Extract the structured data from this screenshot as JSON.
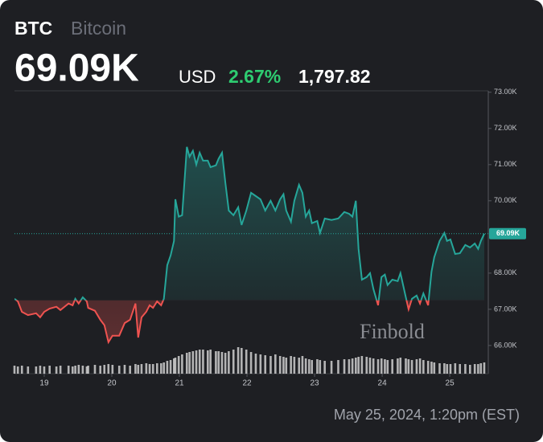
{
  "chart_data": {
    "type": "baseline",
    "header": {
      "symbol": "BTC",
      "name": "Bitcoin",
      "price": "69.09K",
      "currency": "USD",
      "change_pct": "2.67%",
      "change_abs": "1,797.82"
    },
    "watermark": "Finbold",
    "timestamp": "May 25, 2024, 1:20pm (EST)",
    "x": [
      18.56,
      18.61,
      18.67,
      18.76,
      18.88,
      18.94,
      19.0,
      19.08,
      19.18,
      19.24,
      19.36,
      19.42,
      19.46,
      19.51,
      19.57,
      19.63,
      19.65,
      19.75,
      19.83,
      19.89,
      19.95,
      20.01,
      20.11,
      20.19,
      20.27,
      20.35,
      20.39,
      20.44,
      20.51,
      20.56,
      20.61,
      20.67,
      20.73,
      20.77,
      20.82,
      20.87,
      20.92,
      20.94,
      20.99,
      21.04,
      21.11,
      21.15,
      21.2,
      21.25,
      21.3,
      21.35,
      21.42,
      21.46,
      21.54,
      21.58,
      21.63,
      21.68,
      21.73,
      21.8,
      21.87,
      21.92,
      21.99,
      22.06,
      22.13,
      22.2,
      22.27,
      22.35,
      22.42,
      22.49,
      22.54,
      22.58,
      22.65,
      22.7,
      22.77,
      22.82,
      22.87,
      22.92,
      22.96,
      23.04,
      23.08,
      23.15,
      23.25,
      23.35,
      23.44,
      23.51,
      23.56,
      23.61,
      23.65,
      23.7,
      23.77,
      23.82,
      23.87,
      23.94,
      23.99,
      24.04,
      24.08,
      24.15,
      24.23,
      24.27,
      24.35,
      24.39,
      24.44,
      24.51,
      24.56,
      24.61,
      24.68,
      24.73,
      24.77,
      24.85,
      24.92,
      24.96,
      25.01,
      25.08,
      25.15,
      25.23,
      25.3,
      25.37,
      25.42,
      25.46,
      25.51
    ],
    "values": [
      67290,
      67220,
      66930,
      66840,
      66890,
      66780,
      66930,
      67020,
      67070,
      66980,
      67160,
      67110,
      67290,
      67160,
      67330,
      67220,
      67040,
      66960,
      66710,
      66560,
      66090,
      66270,
      66270,
      66620,
      66710,
      67160,
      66220,
      66780,
      66930,
      67110,
      67040,
      67220,
      67110,
      67290,
      68220,
      68490,
      68890,
      70040,
      69560,
      69600,
      71490,
      71220,
      71380,
      71000,
      71330,
      71110,
      71110,
      70930,
      70980,
      71160,
      71330,
      70490,
      69730,
      69600,
      69820,
      69330,
      69730,
      70220,
      70130,
      70040,
      69730,
      70000,
      69730,
      70040,
      70180,
      69730,
      69420,
      70000,
      70440,
      70220,
      69560,
      69730,
      69380,
      69440,
      69110,
      69510,
      69470,
      69510,
      69690,
      69640,
      69560,
      70000,
      68670,
      67820,
      67890,
      68000,
      67560,
      67110,
      67890,
      67960,
      67670,
      67820,
      67780,
      68000,
      67330,
      67000,
      67290,
      67380,
      67160,
      67440,
      67110,
      68040,
      68440,
      68890,
      69110,
      68890,
      68930,
      68530,
      68550,
      68780,
      68710,
      68820,
      68670,
      68890,
      69090
    ],
    "baseline": 67250,
    "color_up": "#26a69a",
    "color_down": "#ef5350",
    "volume": {
      "color": "#cfcfcf",
      "lim": [
        0,
        35
      ],
      "values": [
        10,
        9,
        10,
        9,
        9,
        10,
        9,
        10,
        9,
        10,
        10,
        9,
        10,
        11,
        10,
        9,
        10,
        11,
        10,
        11,
        12,
        11,
        10,
        11,
        10,
        12,
        11,
        12,
        13,
        12,
        12,
        13,
        13,
        14,
        16,
        17,
        19,
        20,
        22,
        24,
        26,
        27,
        28,
        29,
        30,
        30,
        29,
        30,
        28,
        28,
        27,
        26,
        28,
        30,
        33,
        32,
        30,
        27,
        25,
        24,
        23,
        22,
        24,
        22,
        21,
        20,
        22,
        21,
        20,
        22,
        19,
        18,
        17,
        18,
        17,
        16,
        16,
        17,
        18,
        18,
        19,
        20,
        21,
        22,
        21,
        20,
        19,
        18,
        19,
        18,
        17,
        18,
        19,
        20,
        19,
        18,
        17,
        18,
        19,
        17,
        16,
        15,
        14,
        13,
        13,
        12,
        12,
        13,
        12,
        12,
        11,
        12,
        12,
        13,
        14
      ]
    },
    "last_label": {
      "value": 69090,
      "label": "69.09K"
    },
    "xlim": [
      18.56,
      25.57
    ],
    "xticks": [
      19,
      20,
      21,
      22,
      23,
      24,
      25
    ],
    "ylim": [
      65220,
      73040
    ],
    "yticks": [
      {
        "value": 66000,
        "label": "66.00K"
      },
      {
        "value": 67000,
        "label": "67.00K"
      },
      {
        "value": 68000,
        "label": "68.00K"
      },
      {
        "value": 70000,
        "label": "70.00K"
      },
      {
        "value": 71000,
        "label": "71.00K"
      },
      {
        "value": 72000,
        "label": "72.00K"
      },
      {
        "value": 73000,
        "label": "73.00K"
      }
    ]
  }
}
